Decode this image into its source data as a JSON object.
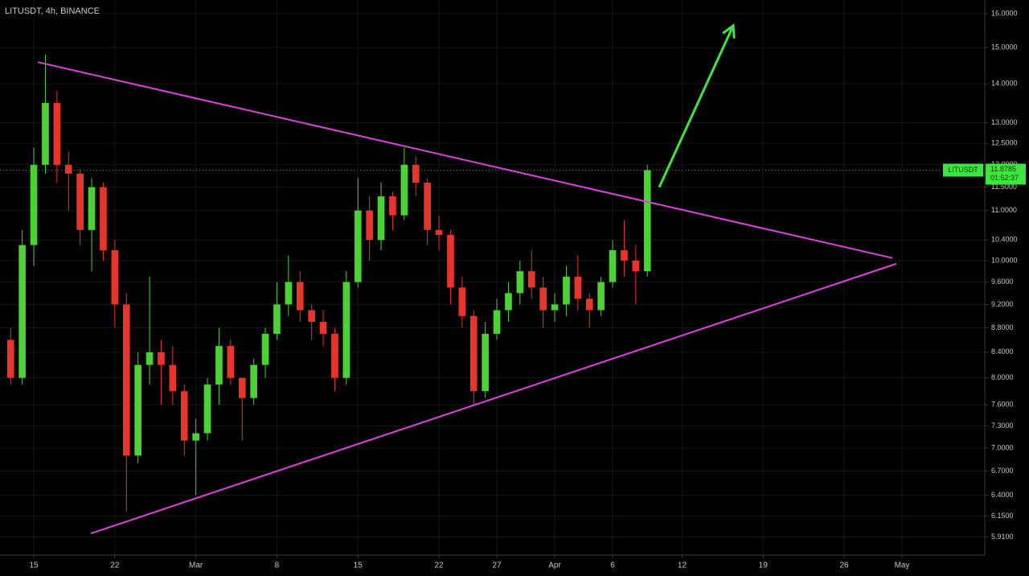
{
  "chart_data": {
    "type": "candlestick",
    "title": "LITUSDT, 4h, BINANCE",
    "log_scale": true,
    "grid": true,
    "up_color": "#4cd137",
    "down_color": "#e8352b",
    "x": [
      -2,
      -1,
      0,
      1,
      2,
      3,
      4,
      5,
      6,
      7,
      8,
      9,
      10,
      11,
      12,
      13,
      14,
      15,
      16,
      17,
      18,
      19,
      20,
      21,
      22,
      23,
      24,
      25,
      26,
      27,
      28,
      29,
      30,
      31,
      32,
      33,
      34,
      35,
      36,
      37,
      38,
      39,
      40,
      41,
      42,
      43,
      44,
      45,
      46,
      47,
      48,
      49,
      50,
      51,
      52,
      53
    ],
    "open": [
      8.6,
      8.0,
      10.3,
      12.0,
      13.5,
      12.0,
      11.8,
      10.6,
      11.5,
      10.2,
      9.2,
      6.9,
      8.2,
      8.4,
      8.2,
      7.8,
      7.1,
      7.2,
      7.9,
      8.5,
      8.0,
      7.7,
      8.2,
      8.7,
      9.2,
      9.6,
      9.1,
      8.9,
      8.7,
      8.0,
      9.6,
      11.0,
      10.4,
      11.3,
      10.9,
      12.0,
      11.6,
      10.6,
      10.5,
      9.5,
      9.0,
      7.8,
      8.7,
      9.1,
      9.4,
      9.8,
      9.5,
      9.1,
      9.2,
      9.7,
      9.3,
      9.1,
      9.6,
      10.2,
      10.0,
      9.8
    ],
    "high": [
      8.8,
      10.6,
      12.4,
      14.8,
      13.8,
      12.3,
      11.9,
      11.7,
      11.6,
      10.4,
      9.4,
      8.4,
      9.7,
      8.6,
      8.5,
      7.9,
      7.4,
      8.0,
      8.8,
      8.6,
      8.0,
      8.3,
      8.8,
      9.6,
      10.1,
      9.8,
      9.2,
      9.1,
      8.8,
      9.8,
      11.7,
      11.3,
      11.6,
      11.4,
      12.4,
      12.2,
      11.7,
      10.9,
      10.6,
      9.7,
      9.1,
      8.9,
      9.3,
      9.6,
      10.0,
      10.2,
      9.7,
      9.4,
      9.9,
      10.1,
      9.4,
      9.7,
      10.4,
      10.8,
      10.3,
      12.0
    ],
    "low": [
      7.9,
      7.9,
      9.9,
      11.8,
      11.6,
      11.0,
      10.3,
      9.8,
      10.0,
      8.8,
      6.2,
      6.8,
      7.9,
      7.6,
      7.6,
      6.9,
      6.4,
      7.1,
      7.6,
      7.9,
      7.1,
      7.6,
      8.0,
      8.6,
      9.0,
      8.9,
      8.6,
      8.5,
      7.8,
      7.9,
      9.5,
      10.0,
      10.2,
      10.6,
      10.8,
      11.3,
      10.3,
      10.2,
      9.2,
      8.8,
      7.6,
      7.7,
      8.6,
      8.9,
      9.2,
      9.3,
      8.8,
      8.9,
      9.0,
      9.1,
      8.8,
      9.0,
      9.5,
      9.7,
      9.2,
      9.7
    ],
    "close": [
      8.0,
      10.3,
      12.0,
      13.5,
      12.0,
      11.8,
      10.6,
      11.5,
      10.2,
      9.2,
      6.9,
      8.2,
      8.4,
      8.2,
      7.8,
      7.1,
      7.2,
      7.9,
      8.5,
      8.0,
      7.7,
      8.2,
      8.7,
      9.2,
      9.6,
      9.1,
      8.9,
      8.7,
      8.0,
      9.6,
      11.0,
      10.4,
      11.3,
      10.9,
      12.0,
      11.6,
      10.6,
      10.5,
      9.5,
      9.0,
      7.8,
      8.7,
      9.1,
      9.4,
      9.8,
      9.5,
      9.1,
      9.2,
      9.7,
      9.3,
      9.1,
      9.6,
      10.2,
      10.0,
      9.8,
      11.8785
    ],
    "xlim": [
      -2.92,
      82.15
    ],
    "xticks": [
      {
        "value": 0,
        "label": "15"
      },
      {
        "value": 7,
        "label": "22"
      },
      {
        "value": 14,
        "label": "Mar"
      },
      {
        "value": 21,
        "label": "8"
      },
      {
        "value": 28,
        "label": "15"
      },
      {
        "value": 35,
        "label": "22"
      },
      {
        "value": 40,
        "label": "27"
      },
      {
        "value": 45,
        "label": "Apr"
      },
      {
        "value": 50,
        "label": "6"
      },
      {
        "value": 56,
        "label": "12"
      },
      {
        "value": 63,
        "label": "19"
      },
      {
        "value": 70,
        "label": "26"
      },
      {
        "value": 75,
        "label": "May"
      }
    ],
    "ylim": [
      5.71,
      16.42
    ],
    "yticks": [
      {
        "value": 16,
        "label": "16.0000"
      },
      {
        "value": 15,
        "label": "15.0000"
      },
      {
        "value": 14,
        "label": "14.0000"
      },
      {
        "value": 13,
        "label": "13.0000"
      },
      {
        "value": 12.5,
        "label": "12.5000"
      },
      {
        "value": 12,
        "label": "12.0000"
      },
      {
        "value": 11.5,
        "label": "11.5000"
      },
      {
        "value": 11,
        "label": "11.0000"
      },
      {
        "value": 10.4,
        "label": "10.4000"
      },
      {
        "value": 10,
        "label": "10.0000"
      },
      {
        "value": 9.6,
        "label": "9.6000"
      },
      {
        "value": 9.2,
        "label": "9.2000"
      },
      {
        "value": 8.8,
        "label": "8.8000"
      },
      {
        "value": 8.4,
        "label": "8.4000"
      },
      {
        "value": 8,
        "label": "8.0000"
      },
      {
        "value": 7.6,
        "label": "7.6000"
      },
      {
        "value": 7.3,
        "label": "7.3000"
      },
      {
        "value": 7,
        "label": "7.0000"
      },
      {
        "value": 6.7,
        "label": "6.7000"
      },
      {
        "value": 6.4,
        "label": "6.4000"
      },
      {
        "value": 6.15,
        "label": "6.1500"
      },
      {
        "value": 5.91,
        "label": "5.9100"
      }
    ],
    "lines": [
      {
        "color": "#e040e0",
        "x": [
          0.35,
          74.17
        ],
        "y": [
          14.59,
          10.05
        ]
      },
      {
        "color": "#e040e0",
        "x": [
          4.93,
          74.5
        ],
        "y": [
          5.95,
          9.94
        ]
      }
    ],
    "arrow": {
      "color": "#3ee53e",
      "x": [
        54.03,
        60.42
      ],
      "y": [
        11.5,
        15.64
      ]
    },
    "last_price": {
      "name": "LITUSDT",
      "value": 11.8785,
      "countdown": "01:52:37",
      "color": "#3ee53e"
    }
  }
}
